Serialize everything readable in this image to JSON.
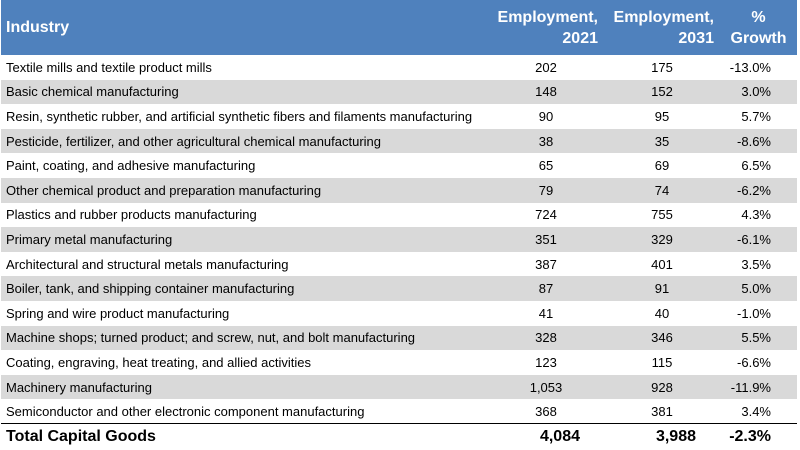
{
  "chart_data": {
    "type": "table",
    "columns": [
      "Industry",
      "Employment, 2021",
      "Employment, 2031",
      "% Growth"
    ],
    "header": {
      "industry": "Industry",
      "emp2021_line1": "Employment,",
      "emp2021_line2": "2021",
      "emp2031_line1": "Employment,",
      "emp2031_line2": "2031",
      "growth_line1": "%",
      "growth_line2": "Growth"
    },
    "rows": [
      {
        "industry": "Textile mills and textile product mills",
        "emp2021": "202",
        "emp2031": "175",
        "growth": "-13.0%"
      },
      {
        "industry": "Basic chemical manufacturing",
        "emp2021": "148",
        "emp2031": "152",
        "growth": "3.0%"
      },
      {
        "industry": "Resin, synthetic rubber, and artificial synthetic fibers and filaments manufacturing",
        "emp2021": "90",
        "emp2031": "95",
        "growth": "5.7%"
      },
      {
        "industry": "Pesticide, fertilizer, and other agricultural chemical manufacturing",
        "emp2021": "38",
        "emp2031": "35",
        "growth": "-8.6%"
      },
      {
        "industry": "Paint, coating, and adhesive manufacturing",
        "emp2021": "65",
        "emp2031": "69",
        "growth": "6.5%"
      },
      {
        "industry": "Other chemical product and preparation manufacturing",
        "emp2021": "79",
        "emp2031": "74",
        "growth": "-6.2%"
      },
      {
        "industry": "Plastics and rubber products manufacturing",
        "emp2021": "724",
        "emp2031": "755",
        "growth": "4.3%"
      },
      {
        "industry": "Primary metal manufacturing",
        "emp2021": "351",
        "emp2031": "329",
        "growth": "-6.1%"
      },
      {
        "industry": "Architectural and structural metals manufacturing",
        "emp2021": "387",
        "emp2031": "401",
        "growth": "3.5%"
      },
      {
        "industry": "Boiler, tank, and shipping container manufacturing",
        "emp2021": "87",
        "emp2031": "91",
        "growth": "5.0%"
      },
      {
        "industry": "Spring and wire product manufacturing",
        "emp2021": "41",
        "emp2031": "40",
        "growth": "-1.0%"
      },
      {
        "industry": "Machine shops; turned product; and screw, nut, and bolt manufacturing",
        "emp2021": "328",
        "emp2031": "346",
        "growth": "5.5%"
      },
      {
        "industry": "Coating, engraving, heat treating, and allied activities",
        "emp2021": "123",
        "emp2031": "115",
        "growth": "-6.6%"
      },
      {
        "industry": "Machinery manufacturing",
        "emp2021": "1,053",
        "emp2031": "928",
        "growth": "-11.9%"
      },
      {
        "industry": "Semiconductor and other electronic component manufacturing",
        "emp2021": "368",
        "emp2031": "381",
        "growth": "3.4%"
      }
    ],
    "total": {
      "industry": "Total Capital Goods",
      "emp2021": "4,084",
      "emp2031": "3,988",
      "growth": "-2.3%"
    }
  },
  "colors": {
    "header_background": "#4f81bd",
    "header_text": "#ffffff",
    "row_stripe": "#d9d9d9",
    "row_plain": "#ffffff"
  }
}
